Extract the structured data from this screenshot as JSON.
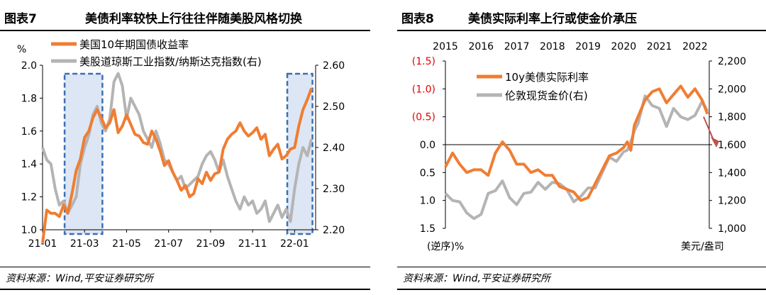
{
  "colors": {
    "orange": "#f07d32",
    "gray": "#b4b4b4",
    "box_border": "#3a6fb5",
    "box_fill": "#dde6f4",
    "red": "#e60000",
    "arrow": "#c0504d"
  },
  "left": {
    "fig_no": "图表7",
    "title": "美债利率较快上行往往伴随美股风格切换",
    "source": "资料来源：Wind,平安证券研究所"
  },
  "right": {
    "fig_no": "图表8",
    "title": "美债实际利率上行或使金价承压",
    "source": "资料来源：Wind,平安证券研究所"
  },
  "chart_data": [
    {
      "type": "line",
      "title": "美债利率较快上行往往伴随美股风格切换",
      "x_ticks": [
        "21-01",
        "21-03",
        "21-05",
        "21-07",
        "21-09",
        "21-11",
        "22-01"
      ],
      "y_left": {
        "label": "%",
        "ticks": [
          "1.0",
          "1.2",
          "1.4",
          "1.6",
          "1.8",
          "2.0"
        ],
        "range": [
          1.0,
          2.0
        ]
      },
      "y_right": {
        "ticks": [
          "2.20",
          "2.30",
          "2.40",
          "2.50",
          "2.60"
        ],
        "range": [
          2.2,
          2.6
        ]
      },
      "x_range": [
        0,
        13.0
      ],
      "highlight_windows": [
        [
          1.05,
          2.85
        ],
        [
          11.65,
          12.85
        ]
      ],
      "series": [
        {
          "name": "美国10年期国债收益率",
          "axis": "left",
          "x": [
            0.0,
            0.2,
            0.4,
            0.6,
            0.8,
            1.0,
            1.2,
            1.4,
            1.6,
            1.8,
            2.0,
            2.2,
            2.4,
            2.6,
            2.8,
            3.0,
            3.2,
            3.4,
            3.6,
            3.8,
            4.0,
            4.2,
            4.4,
            4.6,
            4.8,
            5.0,
            5.2,
            5.4,
            5.6,
            5.8,
            6.0,
            6.2,
            6.4,
            6.6,
            6.8,
            7.0,
            7.2,
            7.4,
            7.6,
            7.8,
            8.0,
            8.2,
            8.4,
            8.6,
            8.8,
            9.0,
            9.2,
            9.4,
            9.6,
            9.8,
            10.0,
            10.2,
            10.4,
            10.6,
            10.8,
            11.0,
            11.2,
            11.4,
            11.6,
            11.8,
            12.0,
            12.2,
            12.4,
            12.6,
            12.8
          ],
          "values": [
            0.92,
            1.12,
            1.1,
            1.1,
            1.08,
            1.15,
            1.1,
            1.22,
            1.36,
            1.43,
            1.56,
            1.6,
            1.68,
            1.73,
            1.68,
            1.62,
            1.65,
            1.73,
            1.59,
            1.63,
            1.7,
            1.64,
            1.58,
            1.57,
            1.53,
            1.52,
            1.6,
            1.55,
            1.48,
            1.39,
            1.42,
            1.35,
            1.3,
            1.24,
            1.27,
            1.2,
            1.22,
            1.31,
            1.28,
            1.35,
            1.3,
            1.34,
            1.35,
            1.49,
            1.55,
            1.58,
            1.6,
            1.65,
            1.6,
            1.57,
            1.59,
            1.62,
            1.55,
            1.58,
            1.45,
            1.49,
            1.52,
            1.43,
            1.45,
            1.49,
            1.5,
            1.63,
            1.73,
            1.79,
            1.86
          ]
        },
        {
          "name": "美股道琼斯工业指数/纳斯达克指数(右)",
          "axis": "right",
          "x": [
            0.0,
            0.2,
            0.4,
            0.6,
            0.8,
            1.0,
            1.2,
            1.4,
            1.6,
            1.8,
            2.0,
            2.2,
            2.4,
            2.6,
            2.8,
            3.0,
            3.2,
            3.4,
            3.6,
            3.8,
            4.0,
            4.2,
            4.4,
            4.6,
            4.8,
            5.0,
            5.2,
            5.4,
            5.6,
            5.8,
            6.0,
            6.2,
            6.4,
            6.6,
            6.8,
            7.0,
            7.2,
            7.4,
            7.6,
            7.8,
            8.0,
            8.2,
            8.4,
            8.6,
            8.8,
            9.0,
            9.2,
            9.4,
            9.6,
            9.8,
            10.0,
            10.2,
            10.4,
            10.6,
            10.8,
            11.0,
            11.2,
            11.4,
            11.6,
            11.8,
            12.0,
            12.2,
            12.4,
            12.6,
            12.8
          ],
          "values": [
            2.4,
            2.37,
            2.36,
            2.3,
            2.26,
            2.27,
            2.24,
            2.26,
            2.28,
            2.36,
            2.4,
            2.43,
            2.48,
            2.5,
            2.46,
            2.44,
            2.47,
            2.56,
            2.58,
            2.55,
            2.47,
            2.52,
            2.5,
            2.48,
            2.44,
            2.42,
            2.4,
            2.44,
            2.41,
            2.37,
            2.36,
            2.34,
            2.32,
            2.33,
            2.3,
            2.31,
            2.32,
            2.33,
            2.36,
            2.38,
            2.39,
            2.37,
            2.34,
            2.37,
            2.33,
            2.3,
            2.27,
            2.25,
            2.28,
            2.26,
            2.27,
            2.24,
            2.25,
            2.27,
            2.22,
            2.24,
            2.26,
            2.23,
            2.25,
            2.22,
            2.3,
            2.36,
            2.4,
            2.38,
            2.42
          ]
        }
      ]
    },
    {
      "type": "line",
      "title": "美债实际利率上行或使金价承压",
      "x_ticks": [
        "2015",
        "2016",
        "2017",
        "2018",
        "2019",
        "2020",
        "2021",
        "2022"
      ],
      "y_left": {
        "label": "(逆序)%",
        "ticks": [
          "(1.5)",
          "(1.0)",
          "(0.5)",
          "0.0",
          "0.5",
          "1.0",
          "1.5"
        ],
        "range": [
          -1.5,
          1.5
        ],
        "inverted": true
      },
      "y_right": {
        "label": "美元/盎司",
        "ticks": [
          "1,000",
          "1,200",
          "1,400",
          "1,600",
          "1,800",
          "2,000",
          "2,200"
        ],
        "range": [
          1000,
          2200
        ]
      },
      "x_range": [
        2015.0,
        2022.4
      ],
      "series": [
        {
          "name": "10y美债实际利率",
          "axis": "left",
          "x": [
            2015.0,
            2015.2,
            2015.4,
            2015.6,
            2015.8,
            2016.0,
            2016.2,
            2016.4,
            2016.6,
            2016.8,
            2017.0,
            2017.2,
            2017.4,
            2017.6,
            2017.8,
            2018.0,
            2018.2,
            2018.4,
            2018.6,
            2018.8,
            2019.0,
            2019.2,
            2019.4,
            2019.6,
            2019.8,
            2020.0,
            2020.1,
            2020.2,
            2020.3,
            2020.4,
            2020.6,
            2020.8,
            2021.0,
            2021.2,
            2021.4,
            2021.6,
            2021.8,
            2022.0,
            2022.2,
            2022.35
          ],
          "values": [
            0.4,
            0.15,
            0.35,
            0.5,
            0.45,
            0.45,
            0.55,
            0.15,
            -0.05,
            0.1,
            0.35,
            0.35,
            0.5,
            0.45,
            0.55,
            0.55,
            0.75,
            0.8,
            0.85,
            1.0,
            0.95,
            0.7,
            0.45,
            0.2,
            0.15,
            0.05,
            -0.05,
            0.1,
            -0.35,
            -0.5,
            -0.8,
            -0.95,
            -1.0,
            -0.75,
            -0.9,
            -1.05,
            -0.85,
            -1.0,
            -0.8,
            -0.55
          ]
        },
        {
          "name": "伦敦现货金价(右)",
          "axis": "right",
          "x": [
            2015.0,
            2015.2,
            2015.4,
            2015.6,
            2015.8,
            2016.0,
            2016.2,
            2016.4,
            2016.6,
            2016.8,
            2017.0,
            2017.2,
            2017.4,
            2017.6,
            2017.8,
            2018.0,
            2018.2,
            2018.4,
            2018.6,
            2018.8,
            2019.0,
            2019.2,
            2019.4,
            2019.6,
            2019.8,
            2020.0,
            2020.1,
            2020.2,
            2020.3,
            2020.4,
            2020.6,
            2020.8,
            2021.0,
            2021.2,
            2021.4,
            2021.6,
            2021.8,
            2022.0,
            2022.2,
            2022.35
          ],
          "values": [
            1250,
            1200,
            1190,
            1110,
            1070,
            1100,
            1250,
            1270,
            1340,
            1220,
            1170,
            1250,
            1260,
            1330,
            1280,
            1330,
            1320,
            1280,
            1190,
            1230,
            1290,
            1290,
            1400,
            1510,
            1480,
            1550,
            1560,
            1620,
            1700,
            1750,
            1950,
            1880,
            1860,
            1730,
            1860,
            1800,
            1780,
            1810,
            1910,
            1840
          ]
        }
      ],
      "annotation": "arrow pointing down-right near 1,600 on right axis"
    }
  ]
}
